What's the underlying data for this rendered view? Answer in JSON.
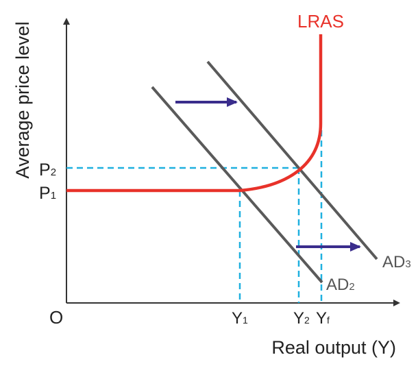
{
  "diagram": {
    "y_axis_label": "Average price level",
    "x_axis_label": "Real output (Y)",
    "origin_label": "O",
    "curves": {
      "lras": "LRAS",
      "ad2": {
        "main": "AD",
        "sub": "2"
      },
      "ad3": {
        "main": "AD",
        "sub": "3"
      }
    },
    "price_levels": [
      {
        "main": "P",
        "sub": "1"
      },
      {
        "main": "P",
        "sub": "2"
      }
    ],
    "output_levels": [
      {
        "main": "Y",
        "sub": "1"
      },
      {
        "main": "Y",
        "sub": "2"
      },
      {
        "main": "Y",
        "sub": "f"
      }
    ],
    "colors": {
      "lras": "#e8322a",
      "ad_curves": "#555555",
      "guides": "#1fb0df",
      "shift_arrows": "#3a2d8c",
      "axes": "#333333"
    }
  }
}
